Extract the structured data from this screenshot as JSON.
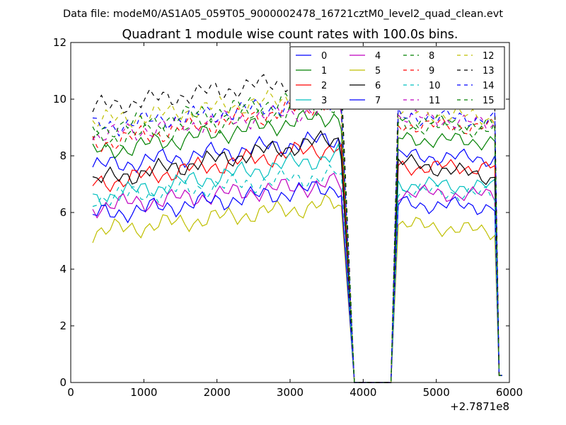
{
  "figure": {
    "suptitle": "Data file: modeM0/AS1A05_059T05_9000002478_16721cztM0_level2_quad_clean.evt",
    "offset_label": "+2.7871e8"
  },
  "chart_data": {
    "type": "line",
    "title": "Quadrant 1 module wise count rates with 100.0s bins.",
    "xlabel": "",
    "ylabel": "",
    "xlim": [
      0,
      6000
    ],
    "ylim": [
      0,
      12
    ],
    "x_ticks": [
      "0",
      "1000",
      "2000",
      "3000",
      "4000",
      "5000",
      "6000"
    ],
    "y_ticks": [
      "0",
      "2",
      "4",
      "6",
      "8",
      "10",
      "12"
    ],
    "x_offset": 278710000,
    "grid": false,
    "legend": "top-right, 4 columns",
    "x": [
      300,
      360,
      420,
      480,
      540,
      600,
      660,
      720,
      780,
      840,
      900,
      960,
      1020,
      1080,
      1140,
      1200,
      1260,
      1320,
      1380,
      1440,
      1500,
      1560,
      1620,
      1680,
      1740,
      1800,
      1860,
      1920,
      1980,
      2040,
      2100,
      2160,
      2220,
      2280,
      2340,
      2400,
      2460,
      2520,
      2580,
      2640,
      2700,
      2760,
      2820,
      2880,
      2940,
      3000,
      3060,
      3120,
      3180,
      3240,
      3300,
      3360,
      3420,
      3480,
      3540,
      3600,
      3660,
      3700,
      3880,
      4380,
      4480,
      4540,
      4600,
      4660,
      4720,
      4780,
      4840,
      4900,
      4960,
      5020,
      5080,
      5140,
      5200,
      5260,
      5320,
      5380,
      5440,
      5500,
      5560,
      5620,
      5680,
      5740,
      5800,
      5860,
      5900
    ],
    "series": [
      {
        "name": "0",
        "color": "#0000ff",
        "dash": "solid",
        "base": 7.6,
        "slope": 0.0003,
        "post": 8.0,
        "end": 7.9
      },
      {
        "name": "1",
        "color": "#008000",
        "dash": "solid",
        "base": 8.1,
        "slope": 0.0004,
        "post": 8.6,
        "end": 8.5
      },
      {
        "name": "2",
        "color": "#ff0000",
        "dash": "solid",
        "base": 7.0,
        "slope": 0.0004,
        "post": 7.6,
        "end": 7.6
      },
      {
        "name": "3",
        "color": "#00bfbf",
        "dash": "solid",
        "base": 6.5,
        "slope": 0.00045,
        "post": 7.0,
        "end": 6.9
      },
      {
        "name": "4",
        "color": "#bf00bf",
        "dash": "solid",
        "base": 6.2,
        "slope": 0.00025,
        "post": 6.7,
        "end": 6.6
      },
      {
        "name": "5",
        "color": "#bfbf00",
        "dash": "solid",
        "base": 5.3,
        "slope": 0.0003,
        "post": 5.6,
        "end": 5.3
      },
      {
        "name": "6",
        "color": "#000000",
        "dash": "solid",
        "base": 7.1,
        "slope": 0.00045,
        "post": 7.8,
        "end": 7.2
      },
      {
        "name": "7",
        "color": "#0000ff",
        "dash": "solid",
        "base": 5.9,
        "slope": 0.0003,
        "post": 6.3,
        "end": 6.2
      },
      {
        "name": "8",
        "color": "#008000",
        "dash": "dashed",
        "base": 8.5,
        "slope": 0.0004,
        "post": 9.1,
        "end": 8.9
      },
      {
        "name": "9",
        "color": "#ff0000",
        "dash": "dashed",
        "base": 8.4,
        "slope": 0.00045,
        "post": 9.1,
        "end": 9.0
      },
      {
        "name": "10",
        "color": "#00bfbf",
        "dash": "dashed",
        "base": 6.5,
        "slope": 0.00025,
        "post": 6.8,
        "end": 6.6
      },
      {
        "name": "11",
        "color": "#bf00bf",
        "dash": "dashed",
        "base": 8.7,
        "slope": 0.0003,
        "post": 9.4,
        "end": 9.1
      },
      {
        "name": "12",
        "color": "#bfbf00",
        "dash": "dashed",
        "base": 9.2,
        "slope": 0.0003,
        "post": 9.6,
        "end": 9.3
      },
      {
        "name": "13",
        "color": "#000000",
        "dash": "dashed",
        "base": 9.7,
        "slope": 0.00035,
        "post": 10.1,
        "end": 9.9
      },
      {
        "name": "14",
        "color": "#0000ff",
        "dash": "dashed",
        "base": 9.0,
        "slope": 0.0003,
        "post": 9.4,
        "end": 9.3
      },
      {
        "name": "15",
        "color": "#008000",
        "dash": "dashed",
        "base": 8.9,
        "slope": 0.0004,
        "post": 9.3,
        "end": 9.0
      }
    ]
  }
}
